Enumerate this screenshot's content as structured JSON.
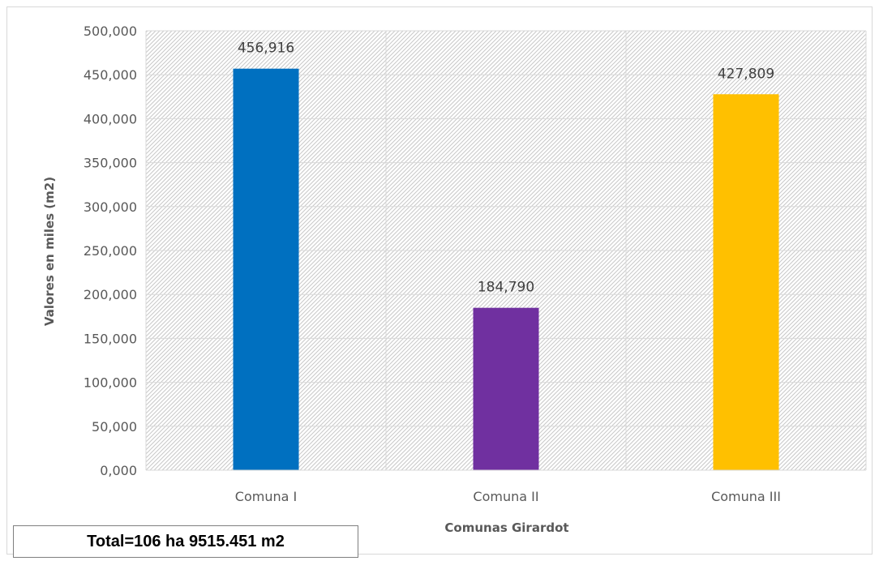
{
  "chart_data": {
    "type": "bar",
    "categories": [
      "Comuna I",
      "Comuna II",
      "Comuna III"
    ],
    "values": [
      456.916,
      184.79,
      427.809
    ],
    "value_labels": [
      "456,916",
      "184,790",
      "427,809"
    ],
    "bar_colors": [
      "#0070C0",
      "#7030A0",
      "#FFC000"
    ],
    "xlabel": "Comunas Girardot",
    "ylabel": "Valores en miles (m2)",
    "ylim": [
      0,
      500
    ],
    "yticks": [
      0,
      50,
      100,
      150,
      200,
      250,
      300,
      350,
      400,
      450,
      500
    ],
    "ytick_labels": [
      "0,000",
      "50,000",
      "100,000",
      "150,000",
      "200,000",
      "250,000",
      "300,000",
      "350,000",
      "400,000",
      "450,000",
      "500,000"
    ],
    "grid": true,
    "plot_background": "hatched light gray",
    "gridline_color": "#d9d9d9"
  },
  "total_note": "Total=106 ha 9515.451 m2"
}
